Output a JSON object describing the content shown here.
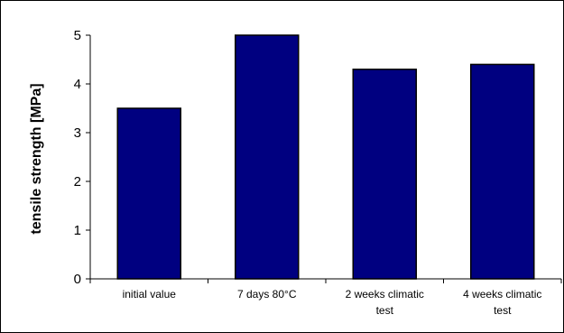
{
  "chart_data": {
    "type": "bar",
    "categories": [
      [
        "initial value"
      ],
      [
        "7 days 80°C"
      ],
      [
        "2 weeks climatic",
        "test"
      ],
      [
        "4 weeks climatic",
        "test"
      ]
    ],
    "category_labels": [
      "initial value",
      "7 days 80°C",
      "2 weeks climatic test",
      "4 weeks climatic test"
    ],
    "values": [
      3.5,
      5.0,
      4.3,
      4.4
    ],
    "title": "",
    "xlabel": "",
    "ylabel": "tensile strength [MPa]",
    "ylim": [
      0,
      5
    ],
    "yticks": [
      "0",
      "1",
      "2",
      "3",
      "4",
      "5"
    ],
    "grid": false,
    "colors": {
      "bar_fill": "#000080",
      "bar_stroke": "#000000",
      "axis": "#000000"
    }
  }
}
